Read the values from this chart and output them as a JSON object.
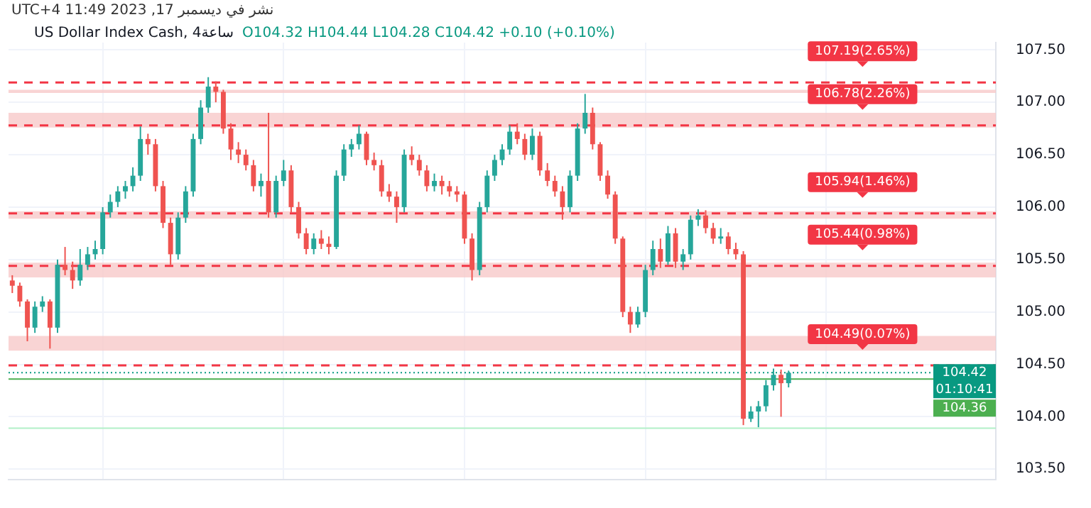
{
  "chart_data": {
    "type": "candlestick",
    "subtitle": "نشر في ديسمبر 17, 2023 11:49 UTC+4",
    "title": "US Dollar Index Cash, 4ساعة",
    "annotations": [
      "O104.32 H104.44 L104.28 C104.42 +0.10 (+0.10%)",
      "01:10:41"
    ],
    "categories": [
      null,
      null,
      null,
      null,
      null,
      null,
      null,
      null,
      null,
      null,
      null,
      null,
      null,
      null,
      null,
      null,
      null,
      null,
      null,
      null,
      null,
      null,
      null,
      null,
      null,
      null,
      null,
      null,
      null,
      null,
      null,
      null,
      null,
      null,
      null,
      null,
      null,
      null,
      null,
      null,
      null,
      null,
      null,
      null,
      null,
      null,
      null,
      null,
      null,
      null,
      null,
      null,
      null,
      null,
      null,
      null,
      null,
      null,
      null,
      null,
      null,
      null,
      null,
      null,
      null,
      null,
      null,
      null,
      null,
      null,
      null,
      null,
      null,
      null,
      null,
      null,
      null,
      null,
      null,
      null,
      null,
      null,
      null,
      null,
      null,
      null,
      null,
      null,
      null,
      null,
      null,
      null,
      null,
      null,
      null,
      null,
      null,
      null,
      null,
      null,
      null,
      null,
      null,
      null,
      null,
      null,
      null,
      null,
      null,
      null,
      null,
      null,
      null,
      null,
      null,
      null,
      null,
      null,
      null,
      null,
      null,
      null,
      null,
      null,
      null,
      null,
      null,
      null,
      null,
      null,
      null
    ],
    "ohlc": [
      [
        105.3,
        105.35,
        105.18,
        105.25
      ],
      [
        105.25,
        105.28,
        105.05,
        105.1
      ],
      [
        105.1,
        105.12,
        104.72,
        104.85
      ],
      [
        104.85,
        105.1,
        104.8,
        105.05
      ],
      [
        105.05,
        105.15,
        105.0,
        105.1
      ],
      [
        105.1,
        105.12,
        104.65,
        104.85
      ],
      [
        104.85,
        105.5,
        104.8,
        105.45
      ],
      [
        105.45,
        105.62,
        105.35,
        105.4
      ],
      [
        105.4,
        105.48,
        105.22,
        105.3
      ],
      [
        105.3,
        105.6,
        105.25,
        105.45
      ],
      [
        105.45,
        105.62,
        105.4,
        105.55
      ],
      [
        105.55,
        105.68,
        105.5,
        105.6
      ],
      [
        105.6,
        106.0,
        105.55,
        105.95
      ],
      [
        105.95,
        106.12,
        105.9,
        106.05
      ],
      [
        106.05,
        106.2,
        106.0,
        106.15
      ],
      [
        106.15,
        106.25,
        106.08,
        106.2
      ],
      [
        106.2,
        106.38,
        106.15,
        106.3
      ],
      [
        106.3,
        106.77,
        106.25,
        106.65
      ],
      [
        106.65,
        106.7,
        106.5,
        106.6
      ],
      [
        106.6,
        106.65,
        106.15,
        106.2
      ],
      [
        106.2,
        106.25,
        105.8,
        105.85
      ],
      [
        105.85,
        105.9,
        105.45,
        105.55
      ],
      [
        105.55,
        105.95,
        105.5,
        105.9
      ],
      [
        105.9,
        106.2,
        105.85,
        106.15
      ],
      [
        106.15,
        106.7,
        106.1,
        106.65
      ],
      [
        106.65,
        107.02,
        106.6,
        106.95
      ],
      [
        106.95,
        107.24,
        106.9,
        107.15
      ],
      [
        107.15,
        107.2,
        107.0,
        107.1
      ],
      [
        107.1,
        107.12,
        106.7,
        106.75
      ],
      [
        106.75,
        106.8,
        106.45,
        106.55
      ],
      [
        106.55,
        106.62,
        106.42,
        106.5
      ],
      [
        106.5,
        106.55,
        106.35,
        106.4
      ],
      [
        106.4,
        106.45,
        106.15,
        106.2
      ],
      [
        106.2,
        106.32,
        106.1,
        106.25
      ],
      [
        106.25,
        106.9,
        105.9,
        105.95
      ],
      [
        105.95,
        106.3,
        105.9,
        106.25
      ],
      [
        106.25,
        106.45,
        106.2,
        106.35
      ],
      [
        106.35,
        106.4,
        105.95,
        106.0
      ],
      [
        106.0,
        106.05,
        105.7,
        105.75
      ],
      [
        105.75,
        105.8,
        105.55,
        105.6
      ],
      [
        105.6,
        105.75,
        105.55,
        105.7
      ],
      [
        105.7,
        105.78,
        105.6,
        105.65
      ],
      [
        105.65,
        105.72,
        105.55,
        105.62
      ],
      [
        105.62,
        106.35,
        105.6,
        106.3
      ],
      [
        106.3,
        106.6,
        106.25,
        106.55
      ],
      [
        106.55,
        106.65,
        106.48,
        106.6
      ],
      [
        106.6,
        106.78,
        106.55,
        106.7
      ],
      [
        106.7,
        106.72,
        106.4,
        106.45
      ],
      [
        106.45,
        106.52,
        106.35,
        106.4
      ],
      [
        106.4,
        106.45,
        106.1,
        106.15
      ],
      [
        106.15,
        106.22,
        106.05,
        106.1
      ],
      [
        106.1,
        106.15,
        105.85,
        106.0
      ],
      [
        106.0,
        106.55,
        105.95,
        106.5
      ],
      [
        106.5,
        106.58,
        106.4,
        106.45
      ],
      [
        106.45,
        106.5,
        106.3,
        106.35
      ],
      [
        106.35,
        106.4,
        106.15,
        106.2
      ],
      [
        106.2,
        106.32,
        106.15,
        106.25
      ],
      [
        106.25,
        106.3,
        106.12,
        106.2
      ],
      [
        106.2,
        106.25,
        106.1,
        106.15
      ],
      [
        106.15,
        106.2,
        106.05,
        106.12
      ],
      [
        106.12,
        106.15,
        105.65,
        105.7
      ],
      [
        105.7,
        105.75,
        105.3,
        105.4
      ],
      [
        105.4,
        106.05,
        105.35,
        106.0
      ],
      [
        106.0,
        106.35,
        105.95,
        106.3
      ],
      [
        106.3,
        106.5,
        106.25,
        106.45
      ],
      [
        106.45,
        106.6,
        106.4,
        106.55
      ],
      [
        106.55,
        106.78,
        106.5,
        106.72
      ],
      [
        106.72,
        106.8,
        106.6,
        106.65
      ],
      [
        106.65,
        106.7,
        106.45,
        106.5
      ],
      [
        106.5,
        106.75,
        106.45,
        106.68
      ],
      [
        106.68,
        106.72,
        106.3,
        106.35
      ],
      [
        106.35,
        106.42,
        106.2,
        106.25
      ],
      [
        106.25,
        106.3,
        106.1,
        106.15
      ],
      [
        106.15,
        106.2,
        105.88,
        106.0
      ],
      [
        106.0,
        106.35,
        105.95,
        106.3
      ],
      [
        106.3,
        106.8,
        106.25,
        106.75
      ],
      [
        106.75,
        107.08,
        106.7,
        106.9
      ],
      [
        106.9,
        106.95,
        106.55,
        106.6
      ],
      [
        106.6,
        106.62,
        106.25,
        106.3
      ],
      [
        106.3,
        106.35,
        106.08,
        106.12
      ],
      [
        106.12,
        106.15,
        105.65,
        105.7
      ],
      [
        105.7,
        105.72,
        104.95,
        105.0
      ],
      [
        105.0,
        105.05,
        104.8,
        104.88
      ],
      [
        104.88,
        105.05,
        104.85,
        105.0
      ],
      [
        105.0,
        105.45,
        104.95,
        105.4
      ],
      [
        105.4,
        105.68,
        105.35,
        105.6
      ],
      [
        105.6,
        105.7,
        105.42,
        105.48
      ],
      [
        105.48,
        105.82,
        105.45,
        105.75
      ],
      [
        105.75,
        105.8,
        105.42,
        105.48
      ],
      [
        105.48,
        105.6,
        105.4,
        105.55
      ],
      [
        105.55,
        105.92,
        105.5,
        105.88
      ],
      [
        105.88,
        105.98,
        105.82,
        105.92
      ],
      [
        105.92,
        105.97,
        105.75,
        105.8
      ],
      [
        105.8,
        105.85,
        105.65,
        105.7
      ],
      [
        105.7,
        105.8,
        105.65,
        105.72
      ],
      [
        105.72,
        105.76,
        105.55,
        105.6
      ],
      [
        105.6,
        105.66,
        105.5,
        105.55
      ],
      [
        105.55,
        105.58,
        103.92,
        103.98
      ],
      [
        103.98,
        104.1,
        103.95,
        104.05
      ],
      [
        104.05,
        104.15,
        103.9,
        104.1
      ],
      [
        104.1,
        104.35,
        104.05,
        104.3
      ],
      [
        104.3,
        104.46,
        104.25,
        104.4
      ],
      [
        104.4,
        104.45,
        104.0,
        104.32
      ],
      [
        104.32,
        104.44,
        104.28,
        104.42
      ],
      null,
      null,
      null,
      null,
      null,
      null,
      null,
      null,
      null,
      null,
      null,
      null,
      null,
      null,
      null,
      null,
      null,
      null,
      null,
      null,
      null,
      null,
      null,
      null,
      null,
      null,
      null
    ],
    "colors": [
      "#ef5350",
      "#ef5350",
      "#ef5350",
      "#26a69a",
      "#26a69a",
      "#ef5350",
      "#26a69a",
      "#ef5350",
      "#ef5350",
      "#26a69a",
      "#26a69a",
      "#26a69a",
      "#26a69a",
      "#26a69a",
      "#26a69a",
      "#26a69a",
      "#26a69a",
      "#26a69a",
      "#ef5350",
      "#ef5350",
      "#ef5350",
      "#ef5350",
      "#26a69a",
      "#26a69a",
      "#26a69a",
      "#26a69a",
      "#26a69a",
      "#ef5350",
      "#ef5350",
      "#ef5350",
      "#ef5350",
      "#ef5350",
      "#ef5350",
      "#26a69a",
      "#ef5350",
      "#26a69a",
      "#26a69a",
      "#ef5350",
      "#ef5350",
      "#ef5350",
      "#26a69a",
      "#ef5350",
      "#ef5350",
      "#26a69a",
      "#26a69a",
      "#26a69a",
      "#26a69a",
      "#ef5350",
      "#ef5350",
      "#ef5350",
      "#ef5350",
      "#ef5350",
      "#26a69a",
      "#ef5350",
      "#ef5350",
      "#ef5350",
      "#26a69a",
      "#ef5350",
      "#ef5350",
      "#ef5350",
      "#ef5350",
      "#ef5350",
      "#26a69a",
      "#26a69a",
      "#26a69a",
      "#26a69a",
      "#26a69a",
      "#ef5350",
      "#ef5350",
      "#26a69a",
      "#ef5350",
      "#ef5350",
      "#ef5350",
      "#ef5350",
      "#26a69a",
      "#26a69a",
      "#26a69a",
      "#ef5350",
      "#ef5350",
      "#ef5350",
      "#ef5350",
      "#ef5350",
      "#ef5350",
      "#26a69a",
      "#26a69a",
      "#26a69a",
      "#ef5350",
      "#26a69a",
      "#ef5350",
      "#26a69a",
      "#26a69a",
      "#26a69a",
      "#ef5350",
      "#ef5350",
      "#26a69a",
      "#ef5350",
      "#ef5350",
      "#ef5350",
      "#26a69a",
      "#26a69a",
      "#26a69a",
      "#26a69a",
      "#ef5350",
      "#26a69a",
      null,
      null,
      null,
      null,
      null,
      null,
      null,
      null,
      null,
      null,
      null,
      null,
      null,
      null,
      null,
      null,
      null,
      null,
      null,
      null,
      null,
      null,
      null,
      null,
      null,
      null,
      null
    ],
    "ylim": [
      103.4,
      107.57
    ],
    "yticks": [
      {
        "value": 103.5,
        "label": "103.50"
      },
      {
        "value": 104,
        "label": "104.00"
      },
      {
        "value": 104.5,
        "label": "104.50"
      },
      {
        "value": 105,
        "label": "105.00"
      },
      {
        "value": 105.5,
        "label": "105.50"
      },
      {
        "value": 106,
        "label": "106.00"
      },
      {
        "value": 106.5,
        "label": "106.50"
      },
      {
        "value": 107,
        "label": "107.00"
      },
      {
        "value": 107.5,
        "label": "107.50"
      }
    ],
    "tick_labels": "y",
    "grid": true,
    "bands": [
      {
        "axis": "y",
        "from": 107.09,
        "to": 107.12,
        "color": "#f8c9c9"
      },
      {
        "axis": "y",
        "from": 106.76,
        "to": 106.9,
        "color": "#f8c9c9"
      },
      {
        "axis": "y",
        "from": 105.89,
        "to": 105.96,
        "color": "#f8c9c9"
      },
      {
        "axis": "y",
        "from": 105.33,
        "to": 105.47,
        "color": "#f8c9c9"
      },
      {
        "axis": "y",
        "from": 104.63,
        "to": 104.77,
        "color": "#f8c9c9"
      }
    ],
    "ref_lines": [
      {
        "axis": "y",
        "value": 107.19,
        "label": "107.19(2.65%)",
        "color": "#f23645",
        "line_style": "dashed"
      },
      {
        "axis": "y",
        "value": 106.78,
        "label": "106.78(2.26%)",
        "color": "#f23645",
        "line_style": "dashed"
      },
      {
        "axis": "y",
        "value": 105.94,
        "label": "105.94(1.46%)",
        "color": "#f23645",
        "line_style": "dashed"
      },
      {
        "axis": "y",
        "value": 105.44,
        "label": "105.44(0.98%)",
        "color": "#f23645",
        "line_style": "dashed"
      },
      {
        "axis": "y",
        "value": 104.49,
        "label": "104.49(0.07%)",
        "color": "#f23645",
        "line_style": "dashed"
      },
      {
        "axis": "y",
        "value": 104.42,
        "label": "104.42",
        "color": "#089981",
        "line_style": "dotted"
      },
      {
        "axis": "y",
        "value": 104.36,
        "label": "104.36",
        "color": "#4caf50",
        "line_style": "solid"
      },
      {
        "axis": "y",
        "value": 103.89,
        "color": "#b2f0c8",
        "line_style": "solid"
      }
    ]
  }
}
